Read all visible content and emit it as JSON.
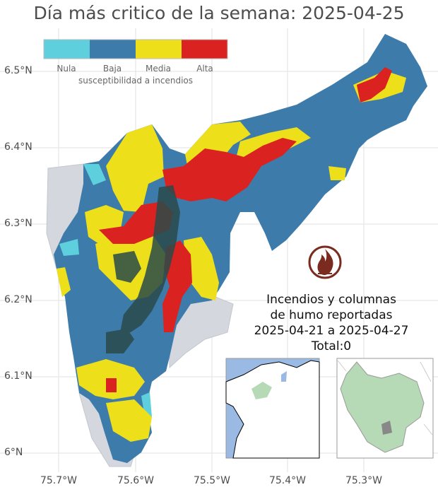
{
  "title": "Día más critico de la semana: 2025-04-25",
  "axes": {
    "y_ticks": [
      "6.5°N",
      "6.4°N",
      "6.3°N",
      "6.2°N",
      "6.1°N",
      "6°N"
    ],
    "x_ticks": [
      "75.7°W",
      "75.6°W",
      "75.5°W",
      "75.4°W",
      "75.3°W"
    ]
  },
  "legend": {
    "title": "susceptibilidad a incendios",
    "items": [
      {
        "label": "Nula",
        "color": "#5ecfdc"
      },
      {
        "label": "Baja",
        "color": "#3d7bab"
      },
      {
        "label": "Media",
        "color": "#eddf1a"
      },
      {
        "label": "Alta",
        "color": "#da2320"
      }
    ]
  },
  "info": {
    "line1": "Incendios y columnas",
    "line2": "de humo reportadas",
    "line3": "2025-04-21 a 2025-04-27",
    "line4": "Total:0"
  },
  "icons": {
    "fire": "fire-icon"
  },
  "colors": {
    "neighbor": "#d4d7dd",
    "sea": "#9ab9e3",
    "region_green": "#b6dab5",
    "urban": "#2a4a4a"
  }
}
